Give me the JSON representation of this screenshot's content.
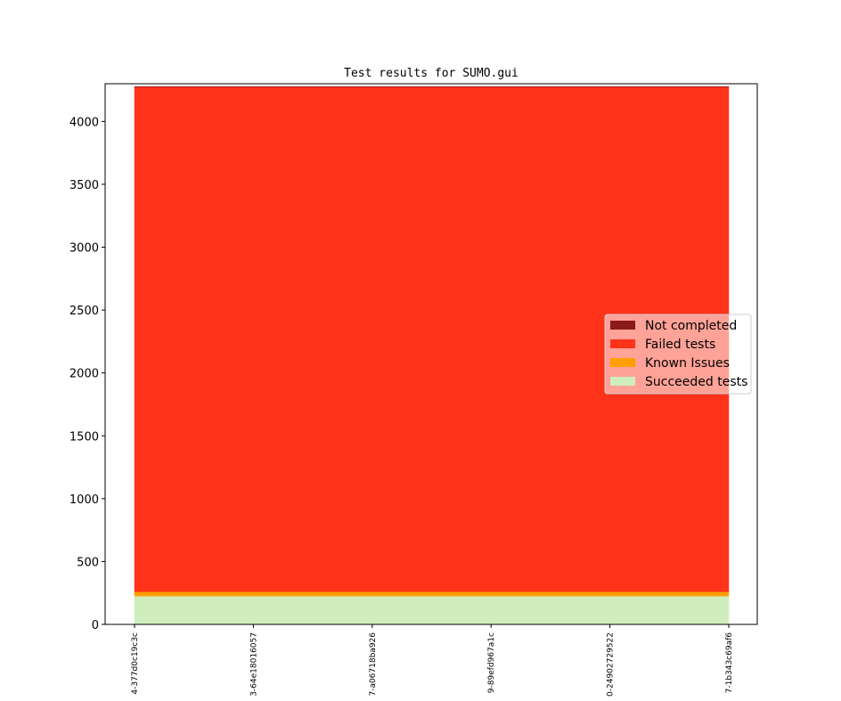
{
  "chart_data": {
    "type": "area",
    "stacked": true,
    "title": "Test results for SUMO.gui",
    "xlabel": "",
    "ylabel": "",
    "x": [
      "4-377d0c19c3c",
      "3-64e18016057",
      "7-a06718ba926",
      "9-89efd967a1c",
      "0-24902729522",
      "7-1b343c69af6"
    ],
    "ylim": [
      0,
      4300
    ],
    "yticks": [
      0,
      500,
      1000,
      1500,
      2000,
      2500,
      3000,
      3500,
      4000
    ],
    "grid": false,
    "legend_position": "center-right",
    "series": [
      {
        "name": "Succeeded tests",
        "color": "#d0edbe",
        "values": [
          225,
          225,
          225,
          225,
          225,
          225
        ]
      },
      {
        "name": "Known Issues",
        "color": "#ff9e00",
        "values": [
          35,
          35,
          35,
          35,
          35,
          35
        ]
      },
      {
        "name": "Failed tests",
        "color": "#ff321a",
        "values": [
          4015,
          4015,
          4015,
          4015,
          4015,
          4015
        ]
      },
      {
        "name": "Not completed",
        "color": "#8b1a1a",
        "values": [
          2,
          2,
          2,
          2,
          2,
          2
        ]
      }
    ],
    "legend_order": [
      "Not completed",
      "Failed tests",
      "Known Issues",
      "Succeeded tests"
    ]
  }
}
